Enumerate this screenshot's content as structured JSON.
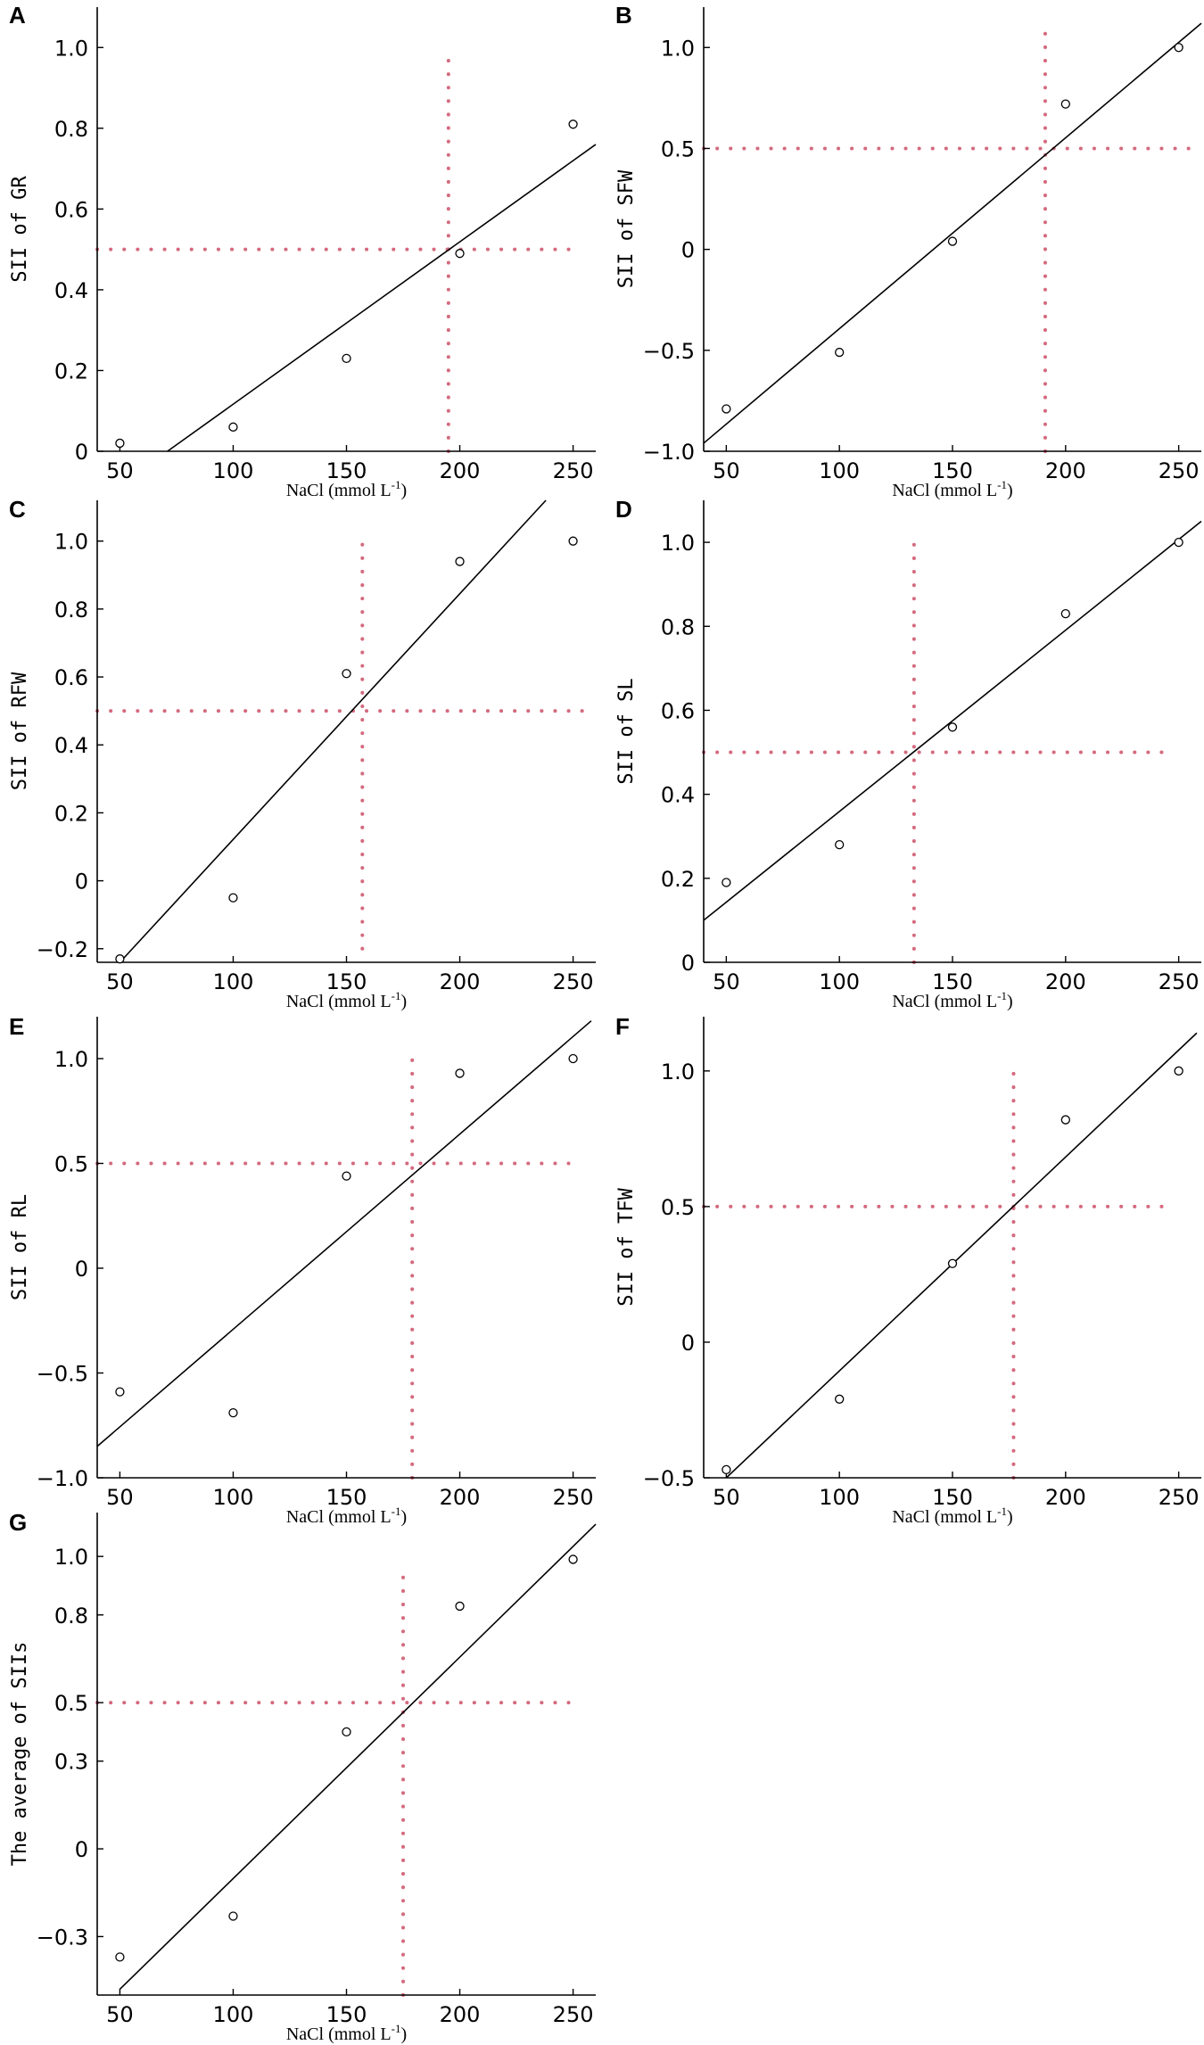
{
  "figure": {
    "xlabel_text": "NaCl (mmol L",
    "xlabel_sup": "-1",
    "xlabel_close": ")",
    "threshold_color": "#d46a7e"
  },
  "chart_data": [
    {
      "panel": "A",
      "type": "scatter",
      "ylabel": "SII of GR",
      "xlim": [
        40,
        260
      ],
      "ylim": [
        0,
        1.1
      ],
      "xticks": [
        50,
        100,
        150,
        200,
        250
      ],
      "yticks": [
        0,
        0.2,
        0.4,
        0.6,
        0.8,
        1.0
      ],
      "ytick_labels": [
        "0",
        "0.2",
        "0.4",
        "0.6",
        "0.8",
        "1.0"
      ],
      "x": [
        50,
        100,
        150,
        200,
        250
      ],
      "y": [
        0.02,
        0.06,
        0.23,
        0.49,
        0.81
      ],
      "fit_line": {
        "x": [
          71,
          260
        ],
        "y": [
          0,
          0.76
        ]
      },
      "threshold_x": 195,
      "threshold_x_range": [
        0,
        1.0
      ],
      "threshold_y": 0.5,
      "threshold_y_range": [
        40,
        250
      ]
    },
    {
      "panel": "B",
      "type": "scatter",
      "ylabel": "SII of SFW",
      "xlim": [
        40,
        260
      ],
      "ylim": [
        -1.0,
        1.2
      ],
      "xticks": [
        50,
        100,
        150,
        200,
        250
      ],
      "yticks": [
        -1.0,
        -0.5,
        0,
        0.5,
        1.0
      ],
      "ytick_labels": [
        "−1.0",
        "−0.5",
        "0",
        "0.5",
        "1.0"
      ],
      "x": [
        50,
        100,
        150,
        200,
        250
      ],
      "y": [
        -0.79,
        -0.51,
        0.04,
        0.72,
        1.0
      ],
      "fit_line": {
        "x": [
          40,
          260
        ],
        "y": [
          -0.96,
          1.12
        ]
      },
      "threshold_x": 191,
      "threshold_x_range": [
        -1.0,
        1.12
      ],
      "threshold_y": 0.5,
      "threshold_y_range": [
        40,
        260
      ]
    },
    {
      "panel": "C",
      "type": "scatter",
      "ylabel": "SII of RFW",
      "xlim": [
        40,
        260
      ],
      "ylim": [
        -0.24,
        1.12
      ],
      "xticks": [
        50,
        100,
        150,
        200,
        250
      ],
      "yticks": [
        -0.2,
        0,
        0.2,
        0.4,
        0.6,
        0.8,
        1.0
      ],
      "ytick_labels": [
        "−0.2",
        "0",
        "0.2",
        "0.4",
        "0.6",
        "0.8",
        "1.0"
      ],
      "x": [
        50,
        100,
        150,
        200,
        250
      ],
      "y": [
        -0.23,
        -0.05,
        0.61,
        0.94,
        1.0
      ],
      "fit_line": {
        "x": [
          50,
          238
        ],
        "y": [
          -0.24,
          1.12
        ]
      },
      "threshold_x": 157,
      "threshold_x_range": [
        -0.2,
        1.0
      ],
      "threshold_y": 0.5,
      "threshold_y_range": [
        40,
        255
      ]
    },
    {
      "panel": "D",
      "type": "scatter",
      "ylabel": "SII of SL",
      "xlim": [
        40,
        260
      ],
      "ylim": [
        0,
        1.1
      ],
      "xticks": [
        50,
        100,
        150,
        200,
        250
      ],
      "yticks": [
        0,
        0.2,
        0.4,
        0.6,
        0.8,
        1.0
      ],
      "ytick_labels": [
        "0",
        "0.2",
        "0.4",
        "0.6",
        "0.8",
        "1.0"
      ],
      "x": [
        50,
        100,
        150,
        200,
        250
      ],
      "y": [
        0.19,
        0.28,
        0.56,
        0.83,
        1.0
      ],
      "fit_line": {
        "x": [
          40,
          260
        ],
        "y": [
          0.1,
          1.05
        ]
      },
      "threshold_x": 133,
      "threshold_x_range": [
        0,
        1.0
      ],
      "threshold_y": 0.5,
      "threshold_y_range": [
        40,
        245
      ]
    },
    {
      "panel": "E",
      "type": "scatter",
      "ylabel": "SII of RL",
      "xlim": [
        40,
        260
      ],
      "ylim": [
        -1.0,
        1.2
      ],
      "xticks": [
        50,
        100,
        150,
        200,
        250
      ],
      "yticks": [
        -1.0,
        -0.5,
        0,
        0.5,
        1.0
      ],
      "ytick_labels": [
        "−1.0",
        "−0.5",
        "0",
        "0.5",
        "1.0"
      ],
      "x": [
        50,
        100,
        150,
        200,
        250
      ],
      "y": [
        -0.59,
        -0.69,
        0.44,
        0.93,
        1.0
      ],
      "fit_line": {
        "x": [
          40,
          258
        ],
        "y": [
          -0.85,
          1.18
        ]
      },
      "threshold_x": 179,
      "threshold_x_range": [
        -1.0,
        1.0
      ],
      "threshold_y": 0.5,
      "threshold_y_range": [
        40,
        248
      ]
    },
    {
      "panel": "F",
      "type": "scatter",
      "ylabel": "SII of TFW",
      "xlim": [
        40,
        260
      ],
      "ylim": [
        -0.5,
        1.2
      ],
      "xticks": [
        50,
        100,
        150,
        200,
        250
      ],
      "yticks": [
        -0.5,
        0,
        0.5,
        1.0
      ],
      "ytick_labels": [
        "−0.5",
        "0",
        "0.5",
        "1.0"
      ],
      "x": [
        50,
        100,
        150,
        200,
        250
      ],
      "y": [
        -0.47,
        -0.21,
        0.29,
        0.82,
        1.0
      ],
      "fit_line": {
        "x": [
          50,
          258
        ],
        "y": [
          -0.5,
          1.14
        ]
      },
      "threshold_x": 177,
      "threshold_x_range": [
        -0.5,
        1.0
      ],
      "threshold_y": 0.5,
      "threshold_y_range": [
        40,
        245
      ]
    },
    {
      "panel": "G",
      "type": "scatter",
      "ylabel": "The average of SIIs",
      "xlim": [
        40,
        260
      ],
      "ylim": [
        -0.5,
        1.15
      ],
      "xticks": [
        50,
        100,
        150,
        200,
        250
      ],
      "yticks": [
        -0.3,
        0,
        0.3,
        0.5,
        0.8,
        1.0
      ],
      "ytick_labels": [
        "−0.3",
        "0",
        "0.3",
        "0.5",
        "0.8",
        "1.0"
      ],
      "x": [
        50,
        100,
        150,
        200,
        250
      ],
      "y": [
        -0.37,
        -0.23,
        0.4,
        0.83,
        0.99
      ],
      "fit_line": {
        "x": [
          50,
          260
        ],
        "y": [
          -0.48,
          1.11
        ]
      },
      "threshold_x": 175,
      "threshold_x_range": [
        -0.5,
        0.96
      ],
      "threshold_y": 0.5,
      "threshold_y_range": [
        40,
        248
      ]
    }
  ]
}
